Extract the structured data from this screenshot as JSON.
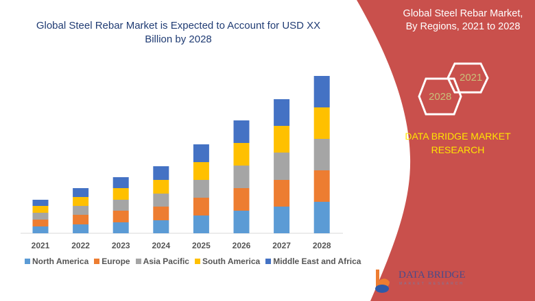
{
  "header": {
    "chart_title": "Global Steel Rebar Market is Expected to Account for USD XX Billion by 2028",
    "panel_title_line1": "Global Steel Rebar Market,",
    "panel_title_line2": "By Regions, 2021 to 2028",
    "hex_year_start": "2021",
    "hex_year_end": "2028",
    "brand_line1": "DATA BRIDGE MARKET",
    "brand_line2": "RESEARCH",
    "logo_text": "DATA BRIDGE",
    "logo_sub": "MARKET RESEARCH"
  },
  "colors": {
    "panel": "#c9504c",
    "brand_text": "#ffe600",
    "title_text": "#1f3b73"
  },
  "chart_data": {
    "type": "bar",
    "stacked": true,
    "title": "Global Steel Rebar Market is Expected to Account for USD XX Billion by 2028",
    "categories": [
      "2021",
      "2022",
      "2023",
      "2024",
      "2025",
      "2026",
      "2027",
      "2028"
    ],
    "series": [
      {
        "name": "North America",
        "color": "#5b9bd5",
        "values": [
          10,
          13,
          16,
          19,
          26,
          33,
          39,
          46
        ]
      },
      {
        "name": "Europe",
        "color": "#ed7d31",
        "values": [
          10,
          14,
          17,
          20,
          26,
          33,
          39,
          46
        ]
      },
      {
        "name": "Asia Pacific",
        "color": "#a5a5a5",
        "values": [
          10,
          13,
          16,
          19,
          26,
          33,
          40,
          46
        ]
      },
      {
        "name": "South America",
        "color": "#ffc000",
        "values": [
          10,
          13,
          17,
          20,
          26,
          33,
          39,
          46
        ]
      },
      {
        "name": "Middle East and Africa",
        "color": "#4472c4",
        "values": [
          9,
          13,
          16,
          20,
          26,
          33,
          39,
          46
        ]
      }
    ],
    "y_axis_shown": false,
    "grid": false,
    "legend_position": "bottom"
  }
}
